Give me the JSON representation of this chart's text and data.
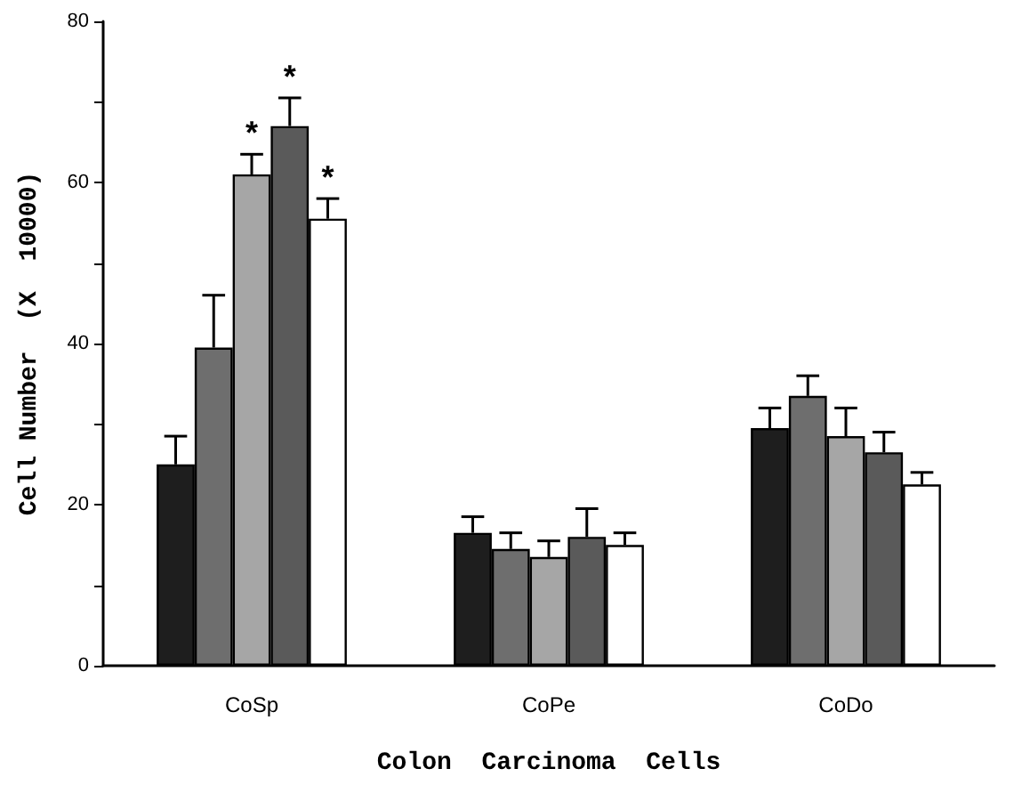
{
  "chart_data": {
    "type": "bar",
    "xlabel": "Colon  Carcinoma  Cells",
    "ylabel": "Cell Number  (X  10000)",
    "categories": [
      "CoSp",
      "CoPe",
      "CoDo"
    ],
    "series": [
      {
        "color": "#1e1e1e",
        "values": [
          25,
          16.5,
          29.5
        ],
        "errors": [
          [
            25,
            28.5
          ],
          [
            16.5,
            18.5
          ],
          [
            29.5,
            32
          ]
        ]
      },
      {
        "color": "#6e6e6e",
        "values": [
          39.5,
          14.5,
          33.5
        ],
        "errors": [
          [
            39.5,
            46
          ],
          [
            14.5,
            16.5
          ],
          [
            33.5,
            36
          ]
        ]
      },
      {
        "color": "#a6a6a6",
        "values": [
          61,
          13.5,
          28.5
        ],
        "errors": [
          [
            61,
            63.5
          ],
          [
            13.5,
            15.5
          ],
          [
            28.5,
            32
          ]
        ],
        "value_labels": [
          "*",
          null,
          null
        ]
      },
      {
        "color": "#5a5a5a",
        "values": [
          67,
          16,
          26.5
        ],
        "errors": [
          [
            67,
            70.5
          ],
          [
            16,
            19.5
          ],
          [
            26.5,
            29
          ]
        ],
        "value_labels": [
          "*",
          null,
          null
        ]
      },
      {
        "color": "#ffffff",
        "values": [
          55.5,
          15,
          22.5
        ],
        "errors": [
          [
            55.5,
            58
          ],
          [
            15,
            16.5
          ],
          [
            22.5,
            24
          ]
        ],
        "value_labels": [
          "*",
          null,
          null
        ]
      }
    ],
    "ylim": [
      0,
      80
    ],
    "yticks": [
      0,
      {
        "value": 10,
        "label": null
      },
      20,
      {
        "value": 30,
        "label": null
      },
      40,
      {
        "value": 50,
        "label": null
      },
      60,
      {
        "value": 70,
        "label": null
      },
      80
    ],
    "grid": false
  }
}
